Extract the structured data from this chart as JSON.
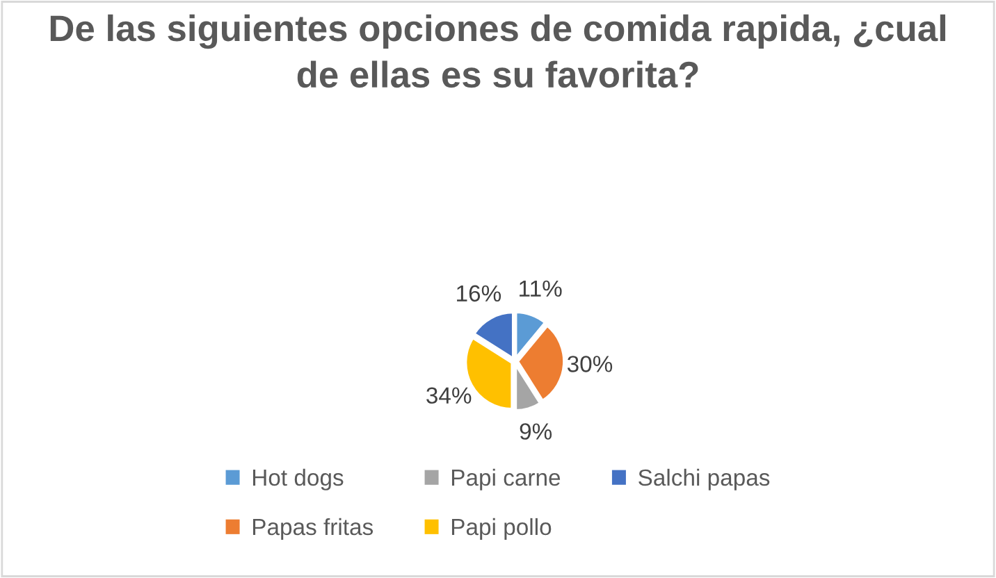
{
  "chart_data": {
    "type": "pie",
    "title": "De las siguientes opciones de comida rapida, ¿cual de ellas es su favorita?",
    "categories": [
      "Hot dogs",
      "Papas fritas",
      "Papi carne",
      "Papi pollo",
      "Salchi papas"
    ],
    "values": [
      11,
      30,
      9,
      34,
      16
    ],
    "value_labels": [
      "11%",
      "30%",
      "9%",
      "34%",
      "16%"
    ],
    "colors": [
      "#5b9bd5",
      "#ed7d31",
      "#a5a5a5",
      "#ffc000",
      "#4472c4"
    ],
    "legend": "bottom"
  }
}
